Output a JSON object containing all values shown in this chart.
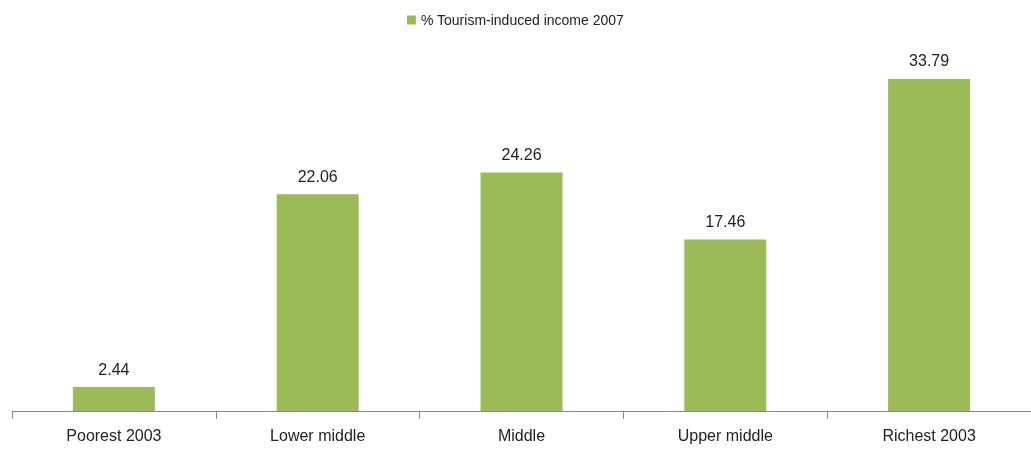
{
  "chart_data": {
    "type": "bar",
    "categories": [
      "Poorest 2003",
      "Lower middle",
      "Middle",
      "Upper middle",
      "Richest 2003"
    ],
    "series": [
      {
        "name": "% Tourism-induced income 2007",
        "color": "#9bbb59",
        "values": [
          2.44,
          22.06,
          24.26,
          17.46,
          33.79
        ]
      }
    ],
    "data_labels": true,
    "legend": "top"
  }
}
